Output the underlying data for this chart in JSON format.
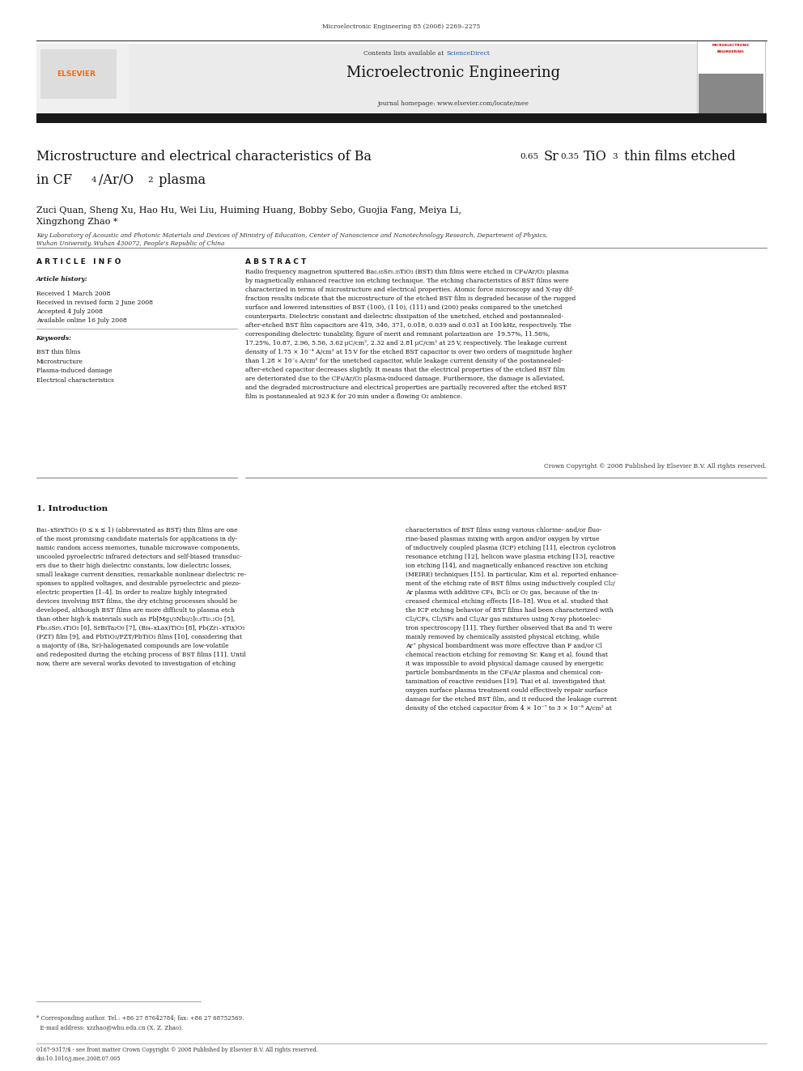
{
  "page_width": 9.92,
  "page_height": 13.23,
  "background_color": "#ffffff",
  "journal_ref": "Microelectronic Engineering 85 (2008) 2269–2275",
  "header_bg": "#e8e8e8",
  "header_title": "Microelectronic Engineering",
  "header_url": "journal homepage: www.elsevier.com/locate/mee",
  "header_sciencedirect": "Contents lists available at ",
  "sciencedirect_text": "ScienceDirect",
  "dark_bar_color": "#1a1a1a",
  "elsevier_color": "#ff6600",
  "authors": "Zuci Quan, Sheng Xu, Hao Hu, Wei Liu, Huiming Huang, Bobby Sebo, Guojia Fang, Meiya Li,\nXingzhong Zhao *",
  "affiliation": "Key Laboratory of Acoustic and Photonic Materials and Devices of Ministry of Education, Center of Nanoscience and Nanotechnology Research, Department of Physics,\nWuhan University, Wuhan 430072, People's Republic of China",
  "article_info_title": "A R T I C L E   I N F O",
  "abstract_title": "A B S T R A C T",
  "article_history_title": "Article history:",
  "article_history": "Received 1 March 2008\nReceived in revised form 2 June 2008\nAccepted 4 July 2008\nAvailable online 16 July 2008",
  "keywords_title": "Keywords:",
  "keywords": "BST thin films\nMicrostructure\nPlasma-induced damage\nElectrical characteristics",
  "copyright_text": "Crown Copyright © 2008 Published by Elsevier B.V. All rights reserved.",
  "section1_title": "1. Introduction",
  "footnote_text": "* Corresponding author. Tel.: +86 27 87642784; fax: +86 27 68752569.\n  E-mail address: xzzhao@whu.edu.cn (X. Z. Zhao).",
  "footer_text": "0167-9317/$ - see front matter Crown Copyright © 2008 Published by Elsevier B.V. All rights reserved.\ndoi:10.1016/j.mee.2008.07.005"
}
